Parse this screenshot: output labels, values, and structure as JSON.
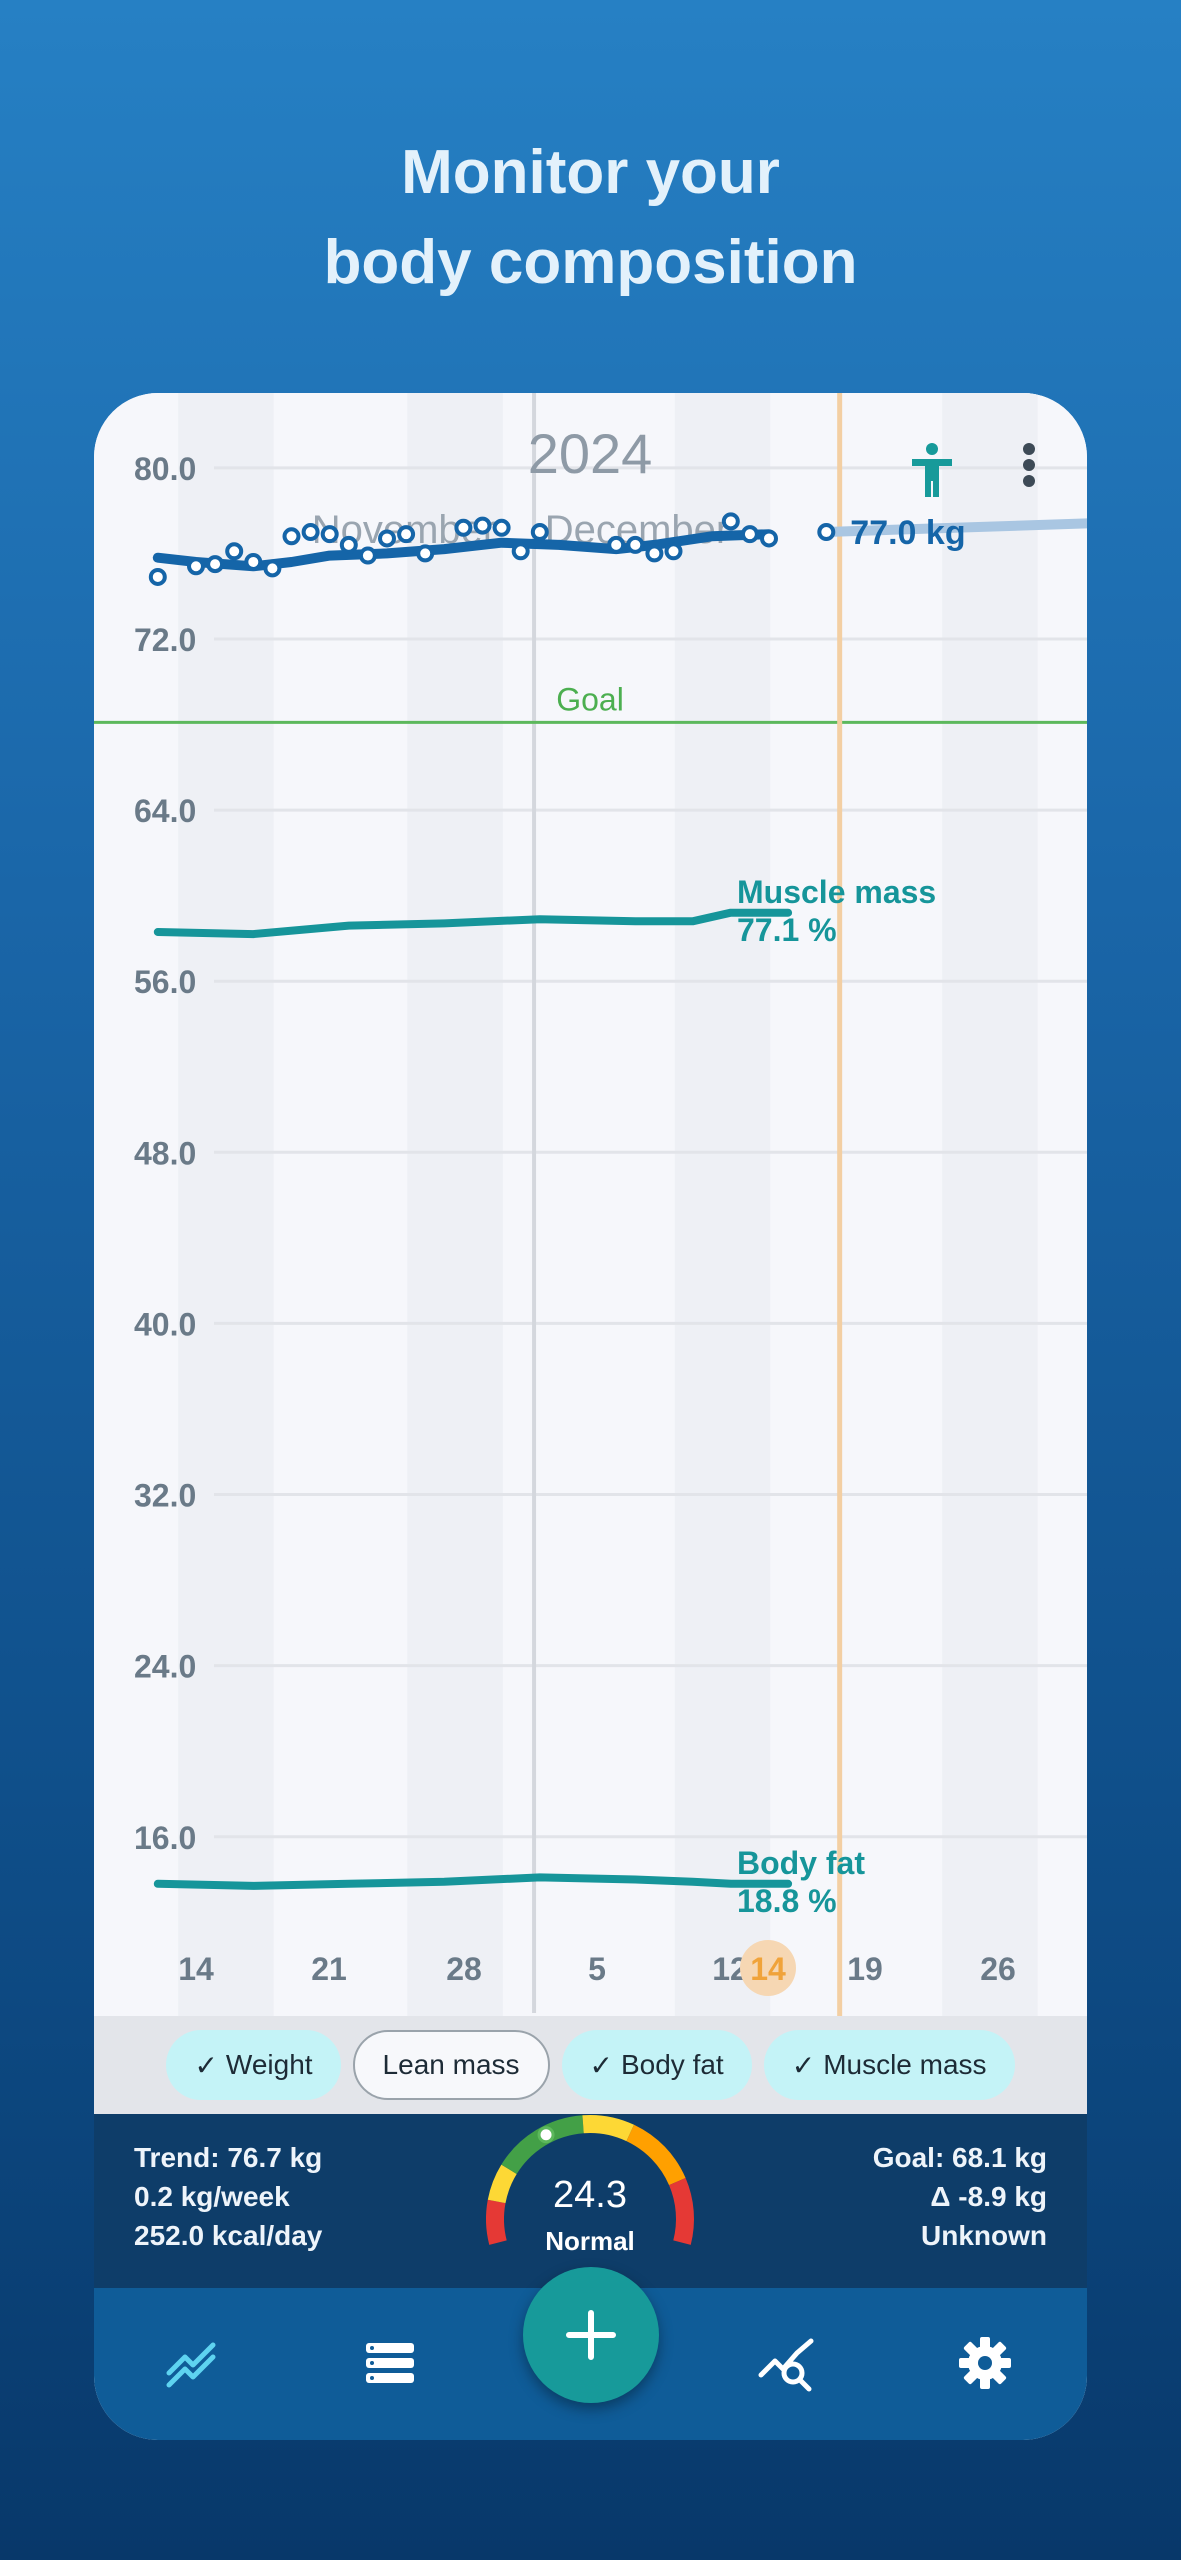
{
  "headline": {
    "line1": "Monitor your",
    "line2": "body composition"
  },
  "header": {
    "year": "2024",
    "months": [
      "November",
      "December"
    ],
    "body_icon": "accessibility-icon",
    "menu_icon": "more-vert-icon"
  },
  "chart_data": {
    "type": "line",
    "title": "",
    "y_ticks": [
      "80.0",
      "72.0",
      "64.0",
      "56.0",
      "48.0",
      "40.0",
      "32.0",
      "24.0",
      "16.0"
    ],
    "ylim": [
      11.5,
      83.5
    ],
    "x_ticks": [
      "14",
      "21",
      "28",
      "5",
      "12",
      "14",
      "19",
      "26"
    ],
    "selected_day": "14",
    "goal": {
      "label": "Goal",
      "value": 68.1
    },
    "series": [
      {
        "name": "Weight",
        "end_label": "77.0 kg",
        "color": "#1565a8",
        "trend": [
          [
            -2,
            75.8
          ],
          [
            0,
            75.6
          ],
          [
            3,
            75.4
          ],
          [
            5,
            75.6
          ],
          [
            7,
            75.9
          ],
          [
            10,
            76.0
          ],
          [
            13,
            76.2
          ],
          [
            16,
            76.5
          ],
          [
            19,
            76.4
          ],
          [
            22,
            76.2
          ],
          [
            24,
            76.4
          ],
          [
            27,
            76.8
          ],
          [
            30,
            76.9
          ]
        ],
        "points": [
          [
            -2,
            74.9
          ],
          [
            0,
            75.4
          ],
          [
            1,
            75.5
          ],
          [
            2,
            76.1
          ],
          [
            3,
            75.6
          ],
          [
            4,
            75.3
          ],
          [
            5,
            76.8
          ],
          [
            6,
            77.0
          ],
          [
            7,
            76.9
          ],
          [
            8,
            76.4
          ],
          [
            9,
            75.9
          ],
          [
            10,
            76.7
          ],
          [
            11,
            76.9
          ],
          [
            12,
            76.0
          ],
          [
            14,
            77.2
          ],
          [
            15,
            77.3
          ],
          [
            16,
            77.2
          ],
          [
            17,
            76.1
          ],
          [
            18,
            77.0
          ],
          [
            22,
            76.4
          ],
          [
            23,
            76.4
          ],
          [
            24,
            76.0
          ],
          [
            25,
            76.1
          ],
          [
            28,
            77.5
          ],
          [
            29,
            76.9
          ],
          [
            30,
            76.7
          ],
          [
            33,
            77.0
          ]
        ],
        "projection": [
          [
            33,
            77.0
          ],
          [
            50,
            77.5
          ]
        ]
      },
      {
        "name": "Muscle mass",
        "end_label_line1": "Muscle mass",
        "end_label_line2": "77.1 %",
        "color": "#16959a",
        "trend": [
          [
            -2,
            58.3
          ],
          [
            3,
            58.2
          ],
          [
            8,
            58.6
          ],
          [
            13,
            58.7
          ],
          [
            18,
            58.9
          ],
          [
            23,
            58.8
          ],
          [
            26,
            58.8
          ],
          [
            28,
            59.2
          ],
          [
            31,
            59.2
          ]
        ]
      },
      {
        "name": "Body fat",
        "end_label_line1": "Body fat",
        "end_label_line2": "18.8 %",
        "color": "#16959a",
        "trend": [
          [
            -2,
            13.8
          ],
          [
            3,
            13.7
          ],
          [
            8,
            13.8
          ],
          [
            13,
            13.9
          ],
          [
            18,
            14.1
          ],
          [
            23,
            14.0
          ],
          [
            26,
            13.9
          ],
          [
            28,
            13.8
          ],
          [
            31,
            13.8
          ]
        ]
      }
    ]
  },
  "legend": [
    {
      "label": "Weight",
      "checked": true
    },
    {
      "label": "Lean mass",
      "checked": false
    },
    {
      "label": "Body fat",
      "checked": true
    },
    {
      "label": "Muscle mass",
      "checked": true
    }
  ],
  "stats": {
    "trend": "Trend: 76.7 kg",
    "rate": "0.2 kg/week",
    "energy": "252.0 kcal/day",
    "goal": "Goal: 68.1 kg",
    "delta": "Δ -8.9 kg",
    "eta": "Unknown",
    "bmi_value": "24.3",
    "bmi_label": "Normal",
    "bmi_fraction": 0.62
  },
  "nav": [
    {
      "name": "nav-chart",
      "icon": "chart-icon",
      "active": true
    },
    {
      "name": "nav-list",
      "icon": "list-icon",
      "active": false
    },
    {
      "name": "nav-add",
      "icon": "add-icon",
      "active": false
    },
    {
      "name": "nav-analysis",
      "icon": "analytics-search-icon",
      "active": false
    },
    {
      "name": "nav-settings",
      "icon": "gear-icon",
      "active": false
    }
  ],
  "colors": {
    "accent": "#179a9a",
    "weight": "#1565a8",
    "goal": "#5cb85c",
    "selected": "#f0a33a"
  }
}
